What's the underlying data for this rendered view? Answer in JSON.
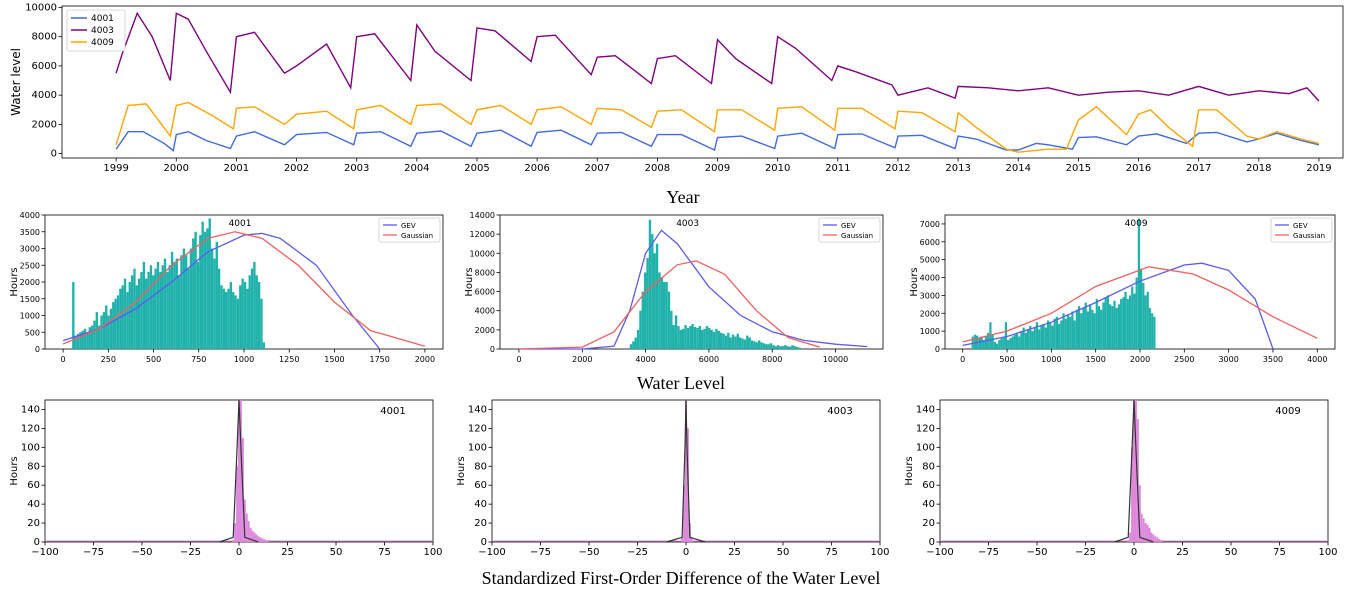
{
  "figure": {
    "xlabel_top": "Year",
    "xlabel_mid": "Water Level",
    "xlabel_bottom": "Standardized First-Order Difference of the Water Level"
  },
  "chart_data": [
    {
      "type": "line",
      "ylabel": "Water level",
      "xlim": [
        1998.1,
        2019.4
      ],
      "ylim": [
        -300,
        10100
      ],
      "xticks": [
        1999,
        2000,
        2001,
        2002,
        2003,
        2004,
        2005,
        2006,
        2007,
        2008,
        2009,
        2010,
        2011,
        2012,
        2013,
        2014,
        2015,
        2016,
        2017,
        2018,
        2019
      ],
      "yticks": [
        0,
        2000,
        4000,
        6000,
        8000,
        10000
      ],
      "legend": "top-left",
      "colors": {
        "4001": "#4169e1",
        "4003": "#800080",
        "4009": "#ffa500"
      },
      "series": [
        {
          "name": "4001",
          "x": [
            1999.0,
            1999.2,
            1999.45,
            1999.8,
            1999.95,
            2000.0,
            2000.2,
            2000.5,
            2000.9,
            2001.0,
            2001.3,
            2001.8,
            2002.0,
            2002.5,
            2002.95,
            2003.0,
            2003.4,
            2003.9,
            2004.0,
            2004.4,
            2004.9,
            2005.0,
            2005.4,
            2005.9,
            2006.0,
            2006.4,
            2006.9,
            2007.0,
            2007.4,
            2007.9,
            2008.0,
            2008.4,
            2008.95,
            2009.0,
            2009.4,
            2009.95,
            2010.0,
            2010.4,
            2010.95,
            2011.0,
            2011.4,
            2011.95,
            2012.0,
            2012.4,
            2012.95,
            2013.0,
            2013.3,
            2013.8,
            2014.0,
            2014.3,
            2014.5,
            2014.9,
            2015.0,
            2015.3,
            2015.8,
            2016.0,
            2016.3,
            2016.8,
            2017.0,
            2017.3,
            2017.8,
            2018.0,
            2018.3,
            2018.7,
            2019.0
          ],
          "y": [
            300,
            1500,
            1500,
            700,
            200,
            1300,
            1500,
            900,
            350,
            1200,
            1500,
            600,
            1300,
            1450,
            600,
            1400,
            1500,
            500,
            1400,
            1550,
            500,
            1400,
            1600,
            500,
            1450,
            1600,
            600,
            1400,
            1450,
            500,
            1300,
            1300,
            250,
            1100,
            1200,
            350,
            1200,
            1400,
            350,
            1300,
            1350,
            400,
            1200,
            1250,
            350,
            1200,
            1000,
            250,
            250,
            700,
            600,
            300,
            1100,
            1150,
            600,
            1200,
            1350,
            700,
            1400,
            1450,
            800,
            1000,
            1400,
            900,
            600
          ]
        },
        {
          "name": "4003",
          "x": [
            1999.0,
            1999.1,
            1999.35,
            1999.6,
            1999.9,
            2000.0,
            2000.2,
            2000.5,
            2000.9,
            2001.0,
            2001.3,
            2001.8,
            2002.0,
            2002.5,
            2002.9,
            2003.0,
            2003.3,
            2003.9,
            2004.0,
            2004.3,
            2004.9,
            2005.0,
            2005.3,
            2005.9,
            2006.0,
            2006.3,
            2006.9,
            2007.0,
            2007.3,
            2007.9,
            2008.0,
            2008.3,
            2008.9,
            2009.0,
            2009.3,
            2009.9,
            2010.0,
            2010.3,
            2010.9,
            2011.0,
            2011.3,
            2011.9,
            2012.0,
            2012.5,
            2012.95,
            2013.0,
            2013.5,
            2014.0,
            2014.5,
            2015.0,
            2015.5,
            2016.0,
            2016.5,
            2017.0,
            2017.5,
            2018.0,
            2018.5,
            2018.8,
            2019.0
          ],
          "y": [
            5500,
            6800,
            9600,
            8000,
            5000,
            9600,
            9200,
            7000,
            4200,
            8000,
            8300,
            5500,
            6000,
            7500,
            4500,
            8000,
            8200,
            5000,
            8800,
            7000,
            5000,
            8600,
            8400,
            6300,
            8000,
            8100,
            5400,
            6600,
            6700,
            4800,
            6500,
            6700,
            4800,
            7800,
            6500,
            4800,
            8000,
            7200,
            5000,
            6000,
            5600,
            4700,
            4000,
            4500,
            3800,
            4600,
            4500,
            4300,
            4500,
            4000,
            4200,
            4300,
            4000,
            4600,
            4000,
            4300,
            4100,
            4500,
            3600
          ]
        },
        {
          "name": "4009",
          "x": [
            1999.0,
            1999.2,
            1999.5,
            1999.9,
            2000.0,
            2000.2,
            2000.6,
            2000.95,
            2001.0,
            2001.3,
            2001.8,
            2002.0,
            2002.5,
            2002.95,
            2003.0,
            2003.4,
            2003.9,
            2004.0,
            2004.4,
            2004.9,
            2005.0,
            2005.4,
            2005.9,
            2006.0,
            2006.4,
            2006.9,
            2007.0,
            2007.4,
            2007.9,
            2008.0,
            2008.4,
            2008.95,
            2009.0,
            2009.4,
            2009.95,
            2010.0,
            2010.4,
            2010.95,
            2011.0,
            2011.4,
            2011.95,
            2012.0,
            2012.4,
            2012.95,
            2013.0,
            2013.3,
            2013.8,
            2014.0,
            2014.5,
            2014.8,
            2015.0,
            2015.3,
            2015.8,
            2016.0,
            2016.2,
            2016.5,
            2016.9,
            2017.0,
            2017.3,
            2017.8,
            2018.0,
            2018.3,
            2018.7,
            2019.0
          ],
          "y": [
            600,
            3300,
            3400,
            1200,
            3300,
            3500,
            2600,
            1700,
            3100,
            3200,
            2000,
            2700,
            2900,
            1700,
            3000,
            3300,
            2000,
            3300,
            3400,
            2000,
            3000,
            3300,
            2000,
            3000,
            3200,
            2000,
            3100,
            3000,
            1800,
            2900,
            3000,
            1500,
            3000,
            3000,
            1600,
            3100,
            3200,
            1600,
            3100,
            3100,
            1700,
            2900,
            2800,
            1500,
            2800,
            1800,
            300,
            100,
            300,
            300,
            2300,
            3200,
            1300,
            2700,
            3000,
            1800,
            500,
            3000,
            3000,
            1200,
            1000,
            1500,
            1000,
            700
          ]
        }
      ]
    },
    {
      "type": "bar",
      "title": "4001",
      "ylabel": "Hours",
      "xlim": [
        -100,
        2100
      ],
      "ylim": [
        0,
        4000
      ],
      "xticks": [
        0,
        250,
        500,
        750,
        1000,
        1250,
        1500,
        1750,
        2000
      ],
      "yticks": [
        0,
        500,
        1000,
        1500,
        2000,
        2500,
        3000,
        3500,
        4000
      ],
      "legend": [
        "GEV",
        "Gaussian"
      ],
      "bins": {
        "start": 50,
        "width": 13
      },
      "values": [
        2000,
        400,
        450,
        500,
        550,
        600,
        500,
        650,
        700,
        850,
        1100,
        700,
        1000,
        1100,
        1300,
        1000,
        1200,
        1400,
        1500,
        1600,
        1800,
        1900,
        2100,
        1700,
        2000,
        2200,
        2400,
        1900,
        2100,
        2300,
        2600,
        2100,
        2300,
        2500,
        2200,
        2400,
        2600,
        2300,
        2500,
        2700,
        2300,
        2500,
        2900,
        2600,
        2700,
        2200,
        2800,
        3000,
        2800,
        2400,
        3000,
        3300,
        3500,
        2600,
        3400,
        3800,
        3500,
        3600,
        3900,
        3000,
        2700,
        3200,
        2400,
        1900,
        1800,
        1700,
        1800,
        2000,
        1700,
        1600,
        1500,
        1900,
        2100,
        2000,
        1800,
        2200,
        2400,
        2600,
        2200,
        2000,
        1500,
        200
      ],
      "gev": {
        "x": [
          0,
          200,
          400,
          600,
          800,
          1000,
          1100,
          1200,
          1400,
          1600,
          1750
        ],
        "y": [
          250,
          600,
          1200,
          2000,
          2900,
          3400,
          3450,
          3300,
          2500,
          1000,
          0
        ]
      },
      "gaussian": {
        "x": [
          0,
          200,
          400,
          600,
          800,
          950,
          1100,
          1300,
          1500,
          1700,
          2000
        ],
        "y": [
          150,
          600,
          1400,
          2500,
          3300,
          3500,
          3300,
          2500,
          1400,
          550,
          80
        ]
      }
    },
    {
      "type": "bar",
      "title": "4003",
      "ylabel": "Hours",
      "xlim": [
        -600,
        11500
      ],
      "ylim": [
        0,
        14000
      ],
      "xticks": [
        0,
        2000,
        4000,
        6000,
        8000,
        10000
      ],
      "yticks": [
        0,
        2000,
        4000,
        6000,
        8000,
        10000,
        12000,
        14000
      ],
      "legend": [
        "GEV",
        "Gaussian"
      ],
      "bins": {
        "start": 3500,
        "width": 75
      },
      "values": [
        500,
        800,
        1200,
        2000,
        4000,
        6000,
        8000,
        9500,
        13500,
        12000,
        10000,
        11000,
        8000,
        7500,
        7000,
        7000,
        6000,
        4000,
        2500,
        3500,
        2400,
        2000,
        2100,
        2500,
        2200,
        2400,
        2600,
        2300,
        2200,
        2400,
        2000,
        2100,
        2400,
        2200,
        2000,
        1800,
        2100,
        1900,
        1700,
        1600,
        1400,
        1700,
        1200,
        1500,
        1300,
        1600,
        1200,
        1100,
        1000,
        1400,
        1200,
        900,
        800,
        700,
        900,
        700,
        600,
        500,
        500,
        600,
        400,
        300,
        400,
        300,
        300,
        400,
        300,
        250,
        400,
        300,
        200,
        150
      ],
      "gev": {
        "x": [
          0,
          2000,
          3000,
          3500,
          4000,
          4500,
          5000,
          6000,
          7000,
          8000,
          9000,
          10000,
          11000
        ],
        "y": [
          0,
          0,
          300,
          4000,
          10000,
          12400,
          11000,
          6500,
          3500,
          1800,
          900,
          500,
          250
        ]
      },
      "gaussian": {
        "x": [
          0,
          2000,
          3000,
          4000,
          5000,
          5600,
          6500,
          7500,
          8500,
          9500
        ],
        "y": [
          0,
          200,
          1800,
          6000,
          8800,
          9200,
          7800,
          4000,
          1200,
          200
        ]
      }
    },
    {
      "type": "bar",
      "title": "4009",
      "ylabel": "Hours",
      "xlim": [
        -200,
        4200
      ],
      "ylim": [
        0,
        7500
      ],
      "xticks": [
        0,
        500,
        1000,
        1500,
        2000,
        2500,
        3000,
        3500,
        4000
      ],
      "yticks": [
        0,
        1000,
        2000,
        3000,
        4000,
        5000,
        6000,
        7000
      ],
      "legend": [
        "GEV",
        "Gaussian"
      ],
      "bins": {
        "start": 100,
        "width": 25
      },
      "values": [
        700,
        800,
        750,
        600,
        700,
        500,
        700,
        900,
        1500,
        800,
        400,
        300,
        500,
        600,
        700,
        1500,
        500,
        600,
        700,
        800,
        900,
        700,
        1000,
        1200,
        900,
        1100,
        1300,
        1000,
        1200,
        1500,
        1100,
        1300,
        1400,
        1200,
        1600,
        1500,
        1300,
        1700,
        1800,
        1400,
        1600,
        2000,
        1700,
        1900,
        1800,
        2100,
        1600,
        2200,
        2400,
        2000,
        2300,
        2600,
        2100,
        2500,
        2200,
        2000,
        2800,
        2400,
        2200,
        2600,
        2900,
        3000,
        2500,
        2400,
        2700,
        2300,
        2500,
        2800,
        2900,
        3200,
        2800,
        3000,
        3500,
        3100,
        4000,
        7300,
        4500,
        3700,
        3000,
        3200,
        2300,
        2000,
        1800
      ],
      "gev": {
        "x": [
          0,
          500,
          1000,
          1500,
          2000,
          2500,
          2700,
          3000,
          3300,
          3500
        ],
        "y": [
          200,
          700,
          1500,
          2600,
          3800,
          4700,
          4800,
          4400,
          2800,
          0
        ]
      },
      "gaussian": {
        "x": [
          0,
          500,
          1000,
          1500,
          2100,
          2600,
          3000,
          3500,
          4000
        ],
        "y": [
          400,
          1000,
          2000,
          3500,
          4600,
          4200,
          3300,
          1800,
          600
        ]
      }
    },
    {
      "type": "bar",
      "title": "4001",
      "ylabel": "Hours",
      "xlim": [
        -100,
        100
      ],
      "ylim": [
        0,
        150
      ],
      "xticks": [
        -100,
        -75,
        -50,
        -25,
        0,
        25,
        50,
        75,
        100
      ],
      "yticks": [
        0,
        20,
        40,
        60,
        80,
        100,
        120,
        140
      ],
      "values_x": [
        -3,
        -2,
        -1,
        0,
        1,
        2,
        3,
        4,
        5,
        6,
        7,
        8,
        9,
        10,
        11,
        12,
        13,
        14,
        15
      ],
      "values": [
        2,
        20,
        80,
        150,
        150,
        110,
        45,
        30,
        22,
        15,
        12,
        10,
        8,
        6,
        5,
        4,
        3,
        2,
        2
      ],
      "kde": {
        "x": [
          -10,
          -3,
          -1,
          0,
          1,
          3,
          10
        ],
        "y": [
          0,
          5,
          100,
          150,
          100,
          5,
          0
        ]
      }
    },
    {
      "type": "bar",
      "title": "4003",
      "ylabel": "Hours",
      "xlim": [
        -100,
        100
      ],
      "ylim": [
        0,
        150
      ],
      "xticks": [
        -100,
        -75,
        -50,
        -25,
        0,
        25,
        50,
        75,
        100
      ],
      "yticks": [
        0,
        20,
        40,
        60,
        80,
        100,
        120,
        140
      ],
      "values_x": [
        -2,
        -1,
        0,
        1,
        2,
        3
      ],
      "values": [
        5,
        60,
        150,
        120,
        20,
        5
      ],
      "kde": {
        "x": [
          -10,
          -2,
          -0.5,
          0,
          0.5,
          2,
          10
        ],
        "y": [
          0,
          5,
          100,
          150,
          100,
          5,
          0
        ]
      }
    },
    {
      "type": "bar",
      "title": "4009",
      "ylabel": "Hours",
      "xlim": [
        -100,
        100
      ],
      "ylim": [
        0,
        150
      ],
      "xticks": [
        -100,
        -75,
        -50,
        -25,
        0,
        25,
        50,
        75,
        100
      ],
      "yticks": [
        0,
        20,
        40,
        60,
        80,
        100,
        120,
        140
      ],
      "values_x": [
        -3,
        -2,
        -1,
        0,
        1,
        2,
        3,
        4,
        5,
        6,
        7,
        8,
        9,
        10,
        11,
        12,
        13,
        14
      ],
      "values": [
        2,
        10,
        100,
        150,
        150,
        130,
        60,
        30,
        25,
        20,
        18,
        15,
        10,
        8,
        6,
        5,
        3,
        2
      ],
      "kde": {
        "x": [
          -10,
          -3,
          -1,
          0,
          1,
          3,
          10
        ],
        "y": [
          0,
          5,
          100,
          150,
          100,
          5,
          0
        ]
      }
    }
  ]
}
